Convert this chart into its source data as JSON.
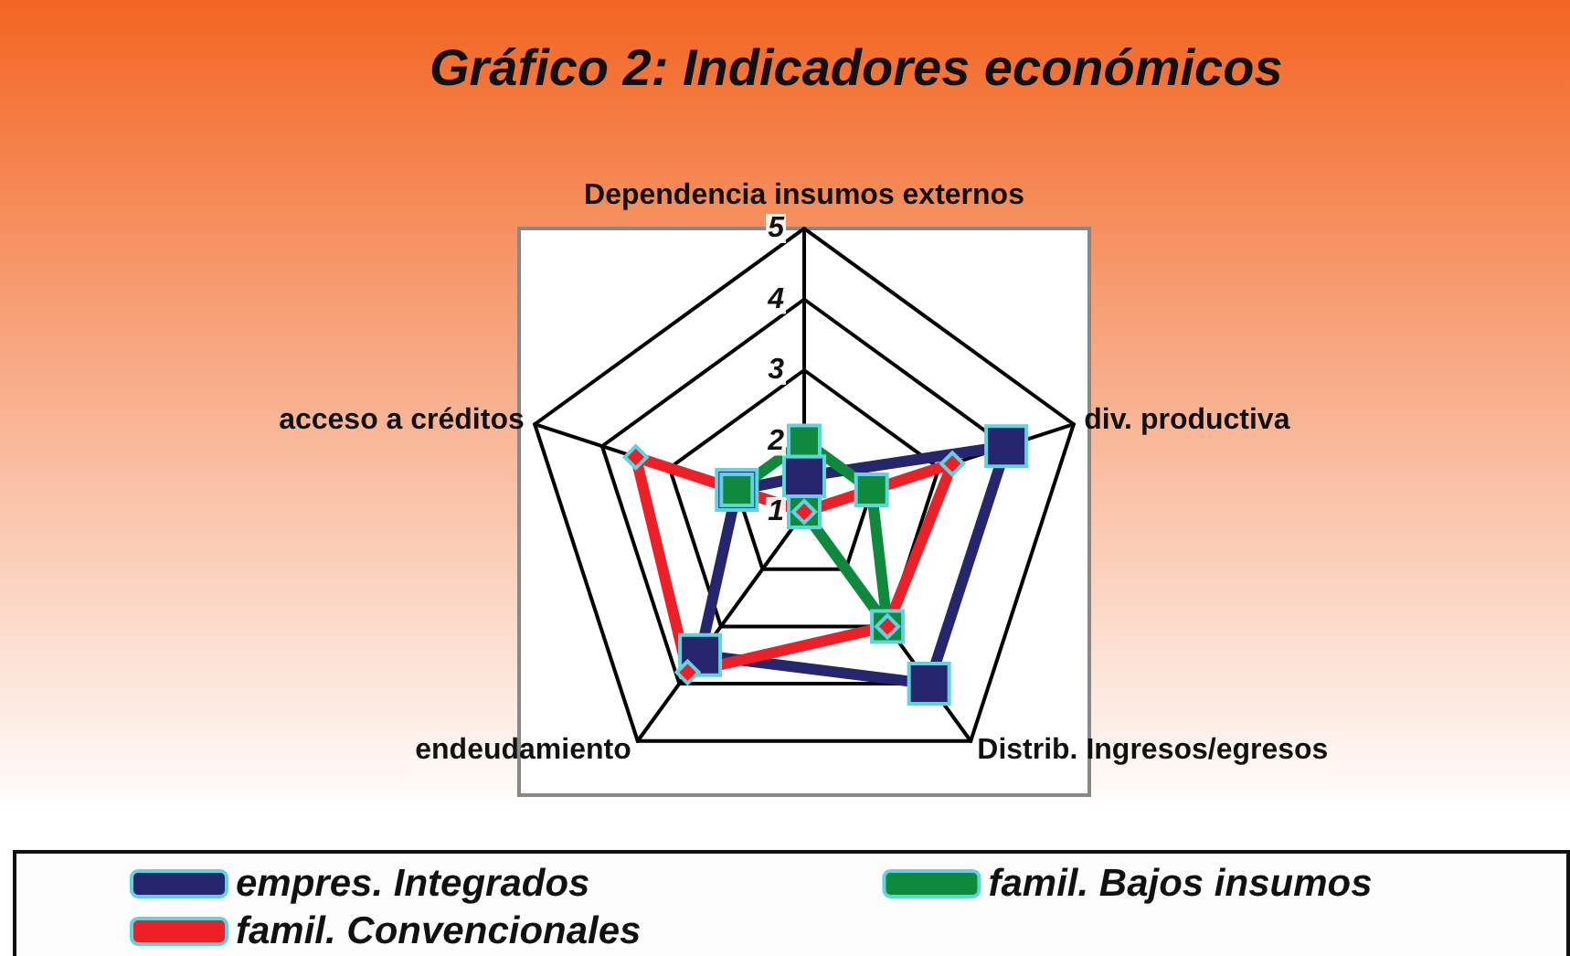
{
  "chart_data": {
    "type": "radar",
    "title": "Gráfico 2: Indicadores económicos",
    "categories": [
      "Dependencia insumos externos",
      "div. productiva",
      "Distrib. Ingresos/egresos",
      "endeudamiento",
      "acceso a créditos"
    ],
    "ylim": [
      1,
      5
    ],
    "yticks": [
      1,
      2,
      3,
      4,
      5
    ],
    "legend": "bottom",
    "series": [
      {
        "name": "empres. Integrados",
        "color": "#26266f",
        "marker": "square",
        "values": [
          1.5,
          4.0,
          4.0,
          3.5,
          2.0
        ]
      },
      {
        "name": "famil. Bajos insumos",
        "color": "#0f8a3c",
        "marker": "square",
        "values": [
          2.0,
          2.0,
          3.0,
          1.0,
          2.0
        ]
      },
      {
        "name": "famil. Convencionales",
        "color": "#ee2027",
        "marker": "diamond",
        "values": [
          1.0,
          3.2,
          3.0,
          3.8,
          3.5
        ]
      }
    ]
  }
}
